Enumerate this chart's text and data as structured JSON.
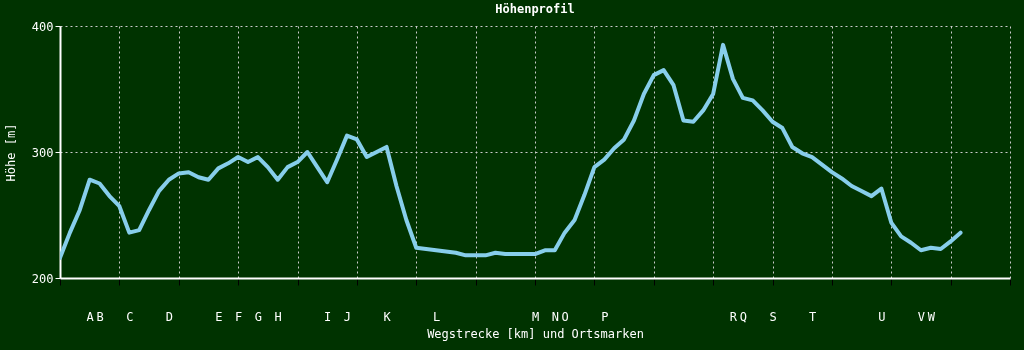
{
  "chart_data": {
    "type": "line",
    "title": "Höhenprofil",
    "xlabel": "Wegstrecke [km] und Ortsmarken",
    "ylabel": "Höhe [m]",
    "categories": [
      null,
      null,
      null,
      "A",
      "B",
      null,
      null,
      "C",
      null,
      null,
      null,
      "D",
      null,
      null,
      null,
      null,
      "E",
      null,
      "F",
      null,
      "G",
      null,
      "H",
      null,
      null,
      null,
      null,
      "I",
      null,
      "J",
      null,
      null,
      null,
      "K",
      null,
      null,
      null,
      null,
      "L",
      null,
      null,
      null,
      null,
      null,
      null,
      null,
      null,
      null,
      "M",
      null,
      "N",
      "O",
      null,
      null,
      null,
      "P",
      null,
      null,
      null,
      null,
      null,
      null,
      null,
      null,
      null,
      null,
      null,
      null,
      "R",
      "Q",
      null,
      null,
      "S",
      null,
      null,
      null,
      "T",
      null,
      null,
      null,
      null,
      null,
      null,
      "U",
      null,
      null,
      null,
      "V",
      "W",
      null,
      null,
      null,
      null,
      null,
      null,
      null,
      null
    ],
    "series": [
      {
        "color": "#87ceeb",
        "values": [
          216,
          236,
          254,
          278,
          275,
          265,
          257,
          236,
          238,
          254,
          269,
          278,
          283,
          284,
          280,
          278,
          287,
          291,
          296,
          292,
          296,
          288,
          278,
          288,
          292,
          300,
          288,
          276,
          294,
          313,
          310,
          296,
          300,
          304,
          273,
          246,
          224,
          223,
          222,
          221,
          220,
          218,
          218,
          218,
          220,
          219,
          219,
          219,
          219,
          222,
          222,
          236,
          246,
          266,
          288,
          294,
          303,
          310,
          325,
          346,
          361,
          365,
          353,
          325,
          324,
          333,
          346,
          385,
          358,
          343,
          341,
          333,
          324,
          319,
          304,
          299,
          296,
          290,
          284,
          279,
          273,
          269,
          265,
          271,
          244,
          233,
          228,
          222,
          224,
          223,
          229,
          236,
          null,
          null,
          null,
          null,
          null
        ]
      }
    ],
    "ylim": [
      200,
      400
    ],
    "yticks": [
      200,
      300,
      400
    ],
    "grid": true,
    "marker": "none",
    "line_style": "solid"
  }
}
